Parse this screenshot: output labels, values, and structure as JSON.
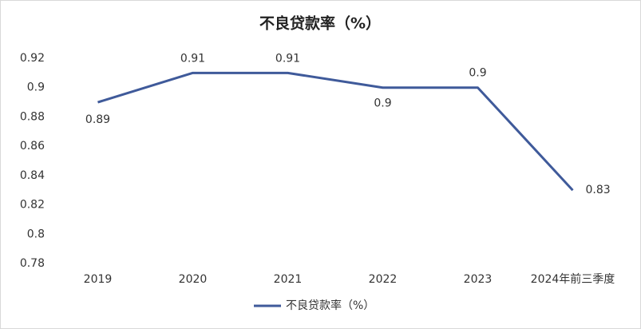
{
  "chart_data": {
    "type": "line",
    "title": "不良贷款率（%）",
    "categories": [
      "2019",
      "2020",
      "2021",
      "2022",
      "2023",
      "2024年前三季度"
    ],
    "series": [
      {
        "name": "不良贷款率（%）",
        "color": "#3f5a9a",
        "values": [
          0.89,
          0.91,
          0.91,
          0.9,
          0.9,
          0.83
        ]
      }
    ],
    "ylim": [
      0.78,
      0.92
    ],
    "yticks": [
      0.78,
      0.8,
      0.82,
      0.84,
      0.86,
      0.88,
      0.9,
      0.92
    ],
    "grid": false,
    "legend": "bottom"
  }
}
